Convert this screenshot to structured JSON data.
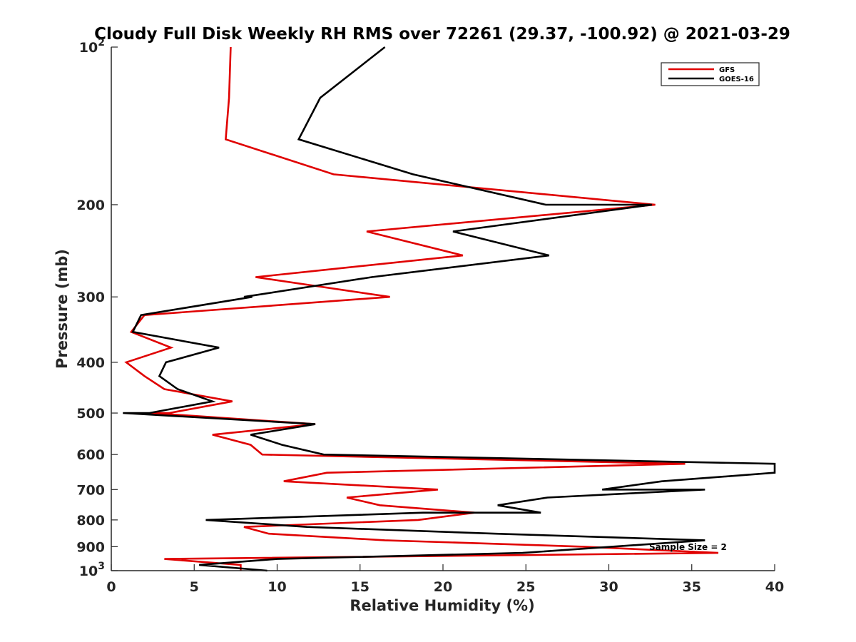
{
  "chart_data": {
    "type": "line",
    "title": "Cloudy Full Disk Weekly RH RMS over 72261 (29.37, -100.92) @ 2021-03-29",
    "xlabel": "Relative Humidity (%)",
    "ylabel": "Pressure (mb)",
    "xlim": [
      0,
      40
    ],
    "ylim": [
      100,
      1000
    ],
    "yscale": "log",
    "y_reversed": true,
    "x_ticks": [
      0,
      5,
      10,
      15,
      20,
      25,
      30,
      35,
      40
    ],
    "x_tick_labels": [
      "0",
      "5",
      "10",
      "15",
      "20",
      "25",
      "30",
      "35",
      "40"
    ],
    "y_ticks": [
      100,
      200,
      300,
      400,
      500,
      600,
      700,
      800,
      900,
      1000
    ],
    "y_tick_labels": [
      {
        "base": "10",
        "exp": "2"
      },
      {
        "base": "200",
        "exp": ""
      },
      {
        "base": "300",
        "exp": ""
      },
      {
        "base": "400",
        "exp": ""
      },
      {
        "base": "500",
        "exp": ""
      },
      {
        "base": "600",
        "exp": ""
      },
      {
        "base": "700",
        "exp": ""
      },
      {
        "base": "800",
        "exp": ""
      },
      {
        "base": "900",
        "exp": ""
      },
      {
        "base": "10",
        "exp": "3"
      }
    ],
    "legend_position": "top-right",
    "annotation": "Sample Size = 2",
    "series": [
      {
        "name": "GFS",
        "color": "#e00000",
        "points": [
          [
            7.2,
            100
          ],
          [
            7.1,
            125
          ],
          [
            6.9,
            150
          ],
          [
            13.4,
            175
          ],
          [
            32.8,
            200
          ],
          [
            15.4,
            225
          ],
          [
            21.2,
            250
          ],
          [
            8.7,
            275
          ],
          [
            16.8,
            300
          ],
          [
            2.0,
            325
          ],
          [
            1.2,
            350
          ],
          [
            3.6,
            375
          ],
          [
            0.9,
            400
          ],
          [
            2.0,
            425
          ],
          [
            3.2,
            450
          ],
          [
            7.3,
            475
          ],
          [
            3.5,
            500
          ],
          [
            2.4,
            500
          ],
          [
            12.3,
            525
          ],
          [
            6.1,
            550
          ],
          [
            8.4,
            575
          ],
          [
            9.1,
            600
          ],
          [
            34.6,
            625
          ],
          [
            13.0,
            650
          ],
          [
            10.4,
            675
          ],
          [
            19.7,
            700
          ],
          [
            14.2,
            725
          ],
          [
            16.2,
            750
          ],
          [
            21.9,
            775
          ],
          [
            18.5,
            800
          ],
          [
            8.0,
            825
          ],
          [
            9.5,
            850
          ],
          [
            16.5,
            875
          ],
          [
            28.5,
            900
          ],
          [
            36.6,
            925
          ],
          [
            3.2,
            950
          ],
          [
            7.8,
            975
          ],
          [
            7.8,
            1000
          ]
        ]
      },
      {
        "name": "GOES-16",
        "color": "#000000",
        "points": [
          [
            16.5,
            100
          ],
          [
            12.6,
            125
          ],
          [
            11.3,
            150
          ],
          [
            18.2,
            175
          ],
          [
            26.2,
            200
          ],
          [
            32.6,
            200
          ],
          [
            20.6,
            225
          ],
          [
            26.4,
            250
          ],
          [
            15.7,
            275
          ],
          [
            8.0,
            300
          ],
          [
            8.5,
            300
          ],
          [
            1.8,
            325
          ],
          [
            1.3,
            350
          ],
          [
            6.5,
            375
          ],
          [
            3.3,
            400
          ],
          [
            3.3,
            400
          ],
          [
            2.9,
            425
          ],
          [
            4.0,
            450
          ],
          [
            6.1,
            475
          ],
          [
            2.3,
            500
          ],
          [
            0.7,
            500
          ],
          [
            12.3,
            525
          ],
          [
            8.4,
            550
          ],
          [
            10.3,
            575
          ],
          [
            12.8,
            600
          ],
          [
            40.0,
            625
          ],
          [
            40.0,
            650
          ],
          [
            33.2,
            675
          ],
          [
            29.6,
            700
          ],
          [
            35.8,
            700
          ],
          [
            26.3,
            725
          ],
          [
            23.3,
            750
          ],
          [
            25.9,
            775
          ],
          [
            18.8,
            775
          ],
          [
            5.7,
            800
          ],
          [
            11.8,
            825
          ],
          [
            23.2,
            850
          ],
          [
            35.8,
            875
          ],
          [
            24.8,
            925
          ],
          [
            10.0,
            950
          ],
          [
            5.3,
            975
          ],
          [
            9.4,
            1000
          ]
        ]
      }
    ]
  }
}
